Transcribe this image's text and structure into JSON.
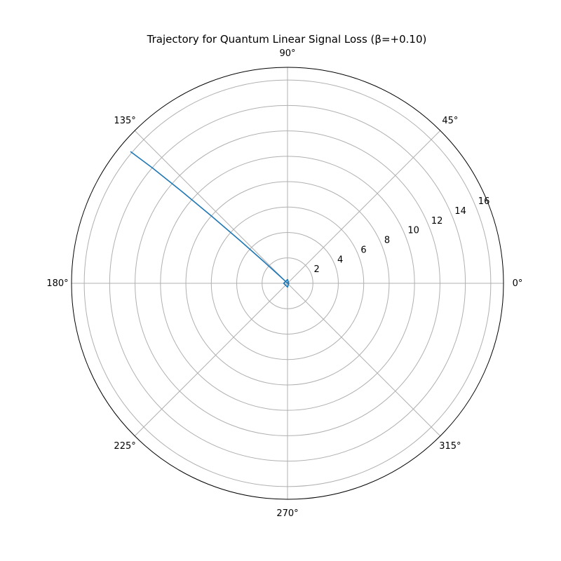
{
  "chart_data": {
    "type": "line",
    "projection": "polar",
    "title": "Trajectory for Quantum Linear Signal Loss (β=+0.10)",
    "rlim": [
      0,
      17
    ],
    "radial_ticks": [
      2,
      4,
      6,
      8,
      10,
      12,
      14,
      16
    ],
    "radial_tick_labels": [
      "2",
      "4",
      "6",
      "8",
      "10",
      "12",
      "14",
      "16"
    ],
    "angular_ticks_deg": [
      0,
      45,
      90,
      135,
      180,
      225,
      270,
      315
    ],
    "angular_tick_labels": [
      "0°",
      "45°",
      "90°",
      "135°",
      "180°",
      "225°",
      "270°",
      "315°"
    ],
    "grid": true,
    "series": [
      {
        "color": "#1f77b4",
        "points": [
          {
            "theta_deg": 0,
            "r": 0.1
          },
          {
            "theta_deg": 90,
            "r": 0.3
          },
          {
            "theta_deg": 180,
            "r": 0.3
          },
          {
            "theta_deg": 270,
            "r": 0.3
          },
          {
            "theta_deg": 330,
            "r": 0.1
          },
          {
            "theta_deg": 135,
            "r": 0.15
          },
          {
            "theta_deg": 137,
            "r": 1.0
          },
          {
            "theta_deg": 137.5,
            "r": 2.5
          },
          {
            "theta_deg": 138,
            "r": 5.0
          },
          {
            "theta_deg": 138.5,
            "r": 8.0
          },
          {
            "theta_deg": 139,
            "r": 11.0
          },
          {
            "theta_deg": 139.5,
            "r": 14.0
          },
          {
            "theta_deg": 140,
            "r": 16.1
          }
        ]
      }
    ]
  }
}
